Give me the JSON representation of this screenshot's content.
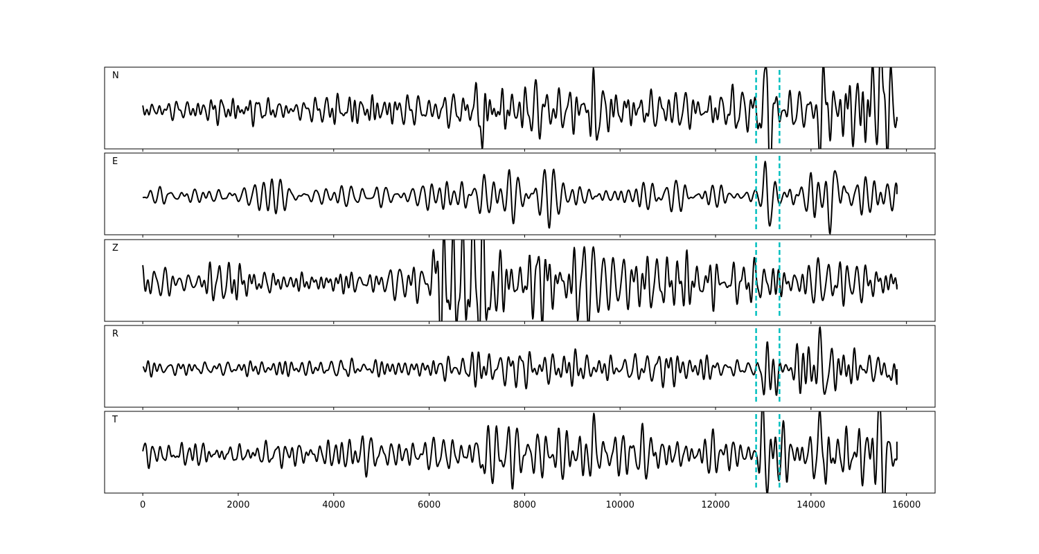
{
  "chart_data": {
    "type": "line",
    "xlim": [
      -800,
      16600
    ],
    "x_ticks": [
      0,
      2000,
      4000,
      6000,
      8000,
      10000,
      12000,
      14000,
      16000
    ],
    "x_tick_labels": [
      "0",
      "2000",
      "4000",
      "6000",
      "8000",
      "10000",
      "12000",
      "14000",
      "16000"
    ],
    "n_samples": 15800,
    "markers": [
      12850,
      13340
    ],
    "colors": {
      "trace": "#000000",
      "marker": "#00bfbf"
    },
    "panels": [
      {
        "label": "N",
        "envelope": [
          [
            0,
            0.2
          ],
          [
            1000,
            0.2
          ],
          [
            2000,
            0.22
          ],
          [
            3000,
            0.22
          ],
          [
            4000,
            0.25
          ],
          [
            5000,
            0.22
          ],
          [
            6000,
            0.2
          ],
          [
            6900,
            0.25
          ],
          [
            7050,
            0.65
          ],
          [
            7300,
            0.35
          ],
          [
            8000,
            0.32
          ],
          [
            9000,
            0.3
          ],
          [
            9400,
            0.55
          ],
          [
            9600,
            0.3
          ],
          [
            10500,
            0.28
          ],
          [
            11000,
            0.3
          ],
          [
            12000,
            0.25
          ],
          [
            12800,
            0.2
          ],
          [
            13000,
            0.8
          ],
          [
            13300,
            0.4
          ],
          [
            13800,
            0.35
          ],
          [
            14200,
            0.85
          ],
          [
            14500,
            0.5
          ],
          [
            15300,
            0.55
          ],
          [
            15800,
            0.4
          ]
        ],
        "features": [
          [
            7070,
            -0.65,
            70
          ],
          [
            7000,
            0.45,
            60
          ],
          [
            9430,
            -0.62,
            60
          ],
          [
            9380,
            0.48,
            60
          ],
          [
            13050,
            0.62,
            50
          ],
          [
            13100,
            -0.6,
            50
          ],
          [
            13180,
            -0.4,
            60
          ],
          [
            14240,
            0.72,
            50
          ],
          [
            14180,
            -0.85,
            50
          ],
          [
            15380,
            0.5,
            80
          ],
          [
            15500,
            0.45,
            80
          ]
        ],
        "end_offset": -0.3
      },
      {
        "label": "E",
        "envelope": [
          [
            0,
            0.15
          ],
          [
            1000,
            0.15
          ],
          [
            2000,
            0.17
          ],
          [
            3000,
            0.18
          ],
          [
            4000,
            0.14
          ],
          [
            5000,
            0.15
          ],
          [
            5800,
            0.15
          ],
          [
            6200,
            0.32
          ],
          [
            7000,
            0.3
          ],
          [
            8000,
            0.3
          ],
          [
            9000,
            0.25
          ],
          [
            10000,
            0.2
          ],
          [
            11000,
            0.25
          ],
          [
            12000,
            0.18
          ],
          [
            12800,
            0.1
          ],
          [
            13000,
            0.2
          ],
          [
            13300,
            0.3
          ],
          [
            14000,
            0.4
          ],
          [
            14600,
            0.45
          ],
          [
            15800,
            0.3
          ]
        ],
        "features": [
          [
            13050,
            0.98,
            55
          ],
          [
            13110,
            -0.82,
            55
          ],
          [
            13000,
            -0.2,
            50
          ],
          [
            14560,
            0.5,
            60
          ],
          [
            14380,
            -0.38,
            60
          ]
        ],
        "end_offset": 0.05
      },
      {
        "label": "Z",
        "envelope": [
          [
            0,
            0.25
          ],
          [
            1000,
            0.22
          ],
          [
            2000,
            0.28
          ],
          [
            2500,
            0.2
          ],
          [
            3000,
            0.2
          ],
          [
            4000,
            0.2
          ],
          [
            5000,
            0.22
          ],
          [
            5500,
            0.3
          ],
          [
            6000,
            0.45
          ],
          [
            6100,
            0.85
          ],
          [
            7000,
            0.85
          ],
          [
            7700,
            0.5
          ],
          [
            8000,
            0.5
          ],
          [
            9000,
            0.45
          ],
          [
            10000,
            0.45
          ],
          [
            11000,
            0.45
          ],
          [
            12000,
            0.4
          ],
          [
            12800,
            0.3
          ],
          [
            13000,
            0.2
          ],
          [
            13300,
            0.25
          ],
          [
            14000,
            0.35
          ],
          [
            15000,
            0.3
          ],
          [
            15800,
            0.25
          ]
        ],
        "features": [
          [
            6130,
            1.0,
            50
          ],
          [
            6180,
            -0.92,
            50
          ],
          [
            6920,
            0.85,
            50
          ],
          [
            7050,
            0.72,
            50
          ],
          [
            7000,
            -0.6,
            60
          ],
          [
            7300,
            -0.65,
            60
          ]
        ],
        "end_offset": -0.05
      },
      {
        "label": "R",
        "envelope": [
          [
            0,
            0.15
          ],
          [
            1000,
            0.15
          ],
          [
            2000,
            0.12
          ],
          [
            3000,
            0.12
          ],
          [
            4000,
            0.13
          ],
          [
            5000,
            0.12
          ],
          [
            6000,
            0.15
          ],
          [
            6100,
            0.4
          ],
          [
            7000,
            0.35
          ],
          [
            7500,
            0.4
          ],
          [
            8000,
            0.35
          ],
          [
            9000,
            0.25
          ],
          [
            10000,
            0.2
          ],
          [
            11000,
            0.2
          ],
          [
            12000,
            0.15
          ],
          [
            12700,
            0.12
          ],
          [
            12900,
            0.2
          ],
          [
            13300,
            0.3
          ],
          [
            13800,
            0.4
          ],
          [
            14300,
            0.5
          ],
          [
            15000,
            0.4
          ],
          [
            15800,
            0.35
          ]
        ],
        "features": [
          [
            13080,
            0.98,
            55
          ],
          [
            13020,
            -0.82,
            55
          ],
          [
            13140,
            -0.55,
            55
          ],
          [
            13280,
            -0.3,
            60
          ],
          [
            14300,
            -0.45,
            60
          ],
          [
            14200,
            0.45,
            60
          ],
          [
            15700,
            -0.4,
            60
          ]
        ],
        "end_offset": -0.02
      },
      {
        "label": "T",
        "envelope": [
          [
            0,
            0.2
          ],
          [
            1000,
            0.22
          ],
          [
            2000,
            0.22
          ],
          [
            3000,
            0.22
          ],
          [
            4000,
            0.25
          ],
          [
            5000,
            0.22
          ],
          [
            6000,
            0.2
          ],
          [
            7000,
            0.35
          ],
          [
            8000,
            0.3
          ],
          [
            9000,
            0.3
          ],
          [
            9400,
            0.5
          ],
          [
            9600,
            0.3
          ],
          [
            10500,
            0.35
          ],
          [
            11000,
            0.3
          ],
          [
            12000,
            0.25
          ],
          [
            12800,
            0.2
          ],
          [
            13000,
            0.7
          ],
          [
            13300,
            0.4
          ],
          [
            14000,
            0.35
          ],
          [
            14250,
            0.9
          ],
          [
            14500,
            0.5
          ],
          [
            15400,
            0.6
          ],
          [
            15800,
            0.4
          ]
        ],
        "features": [
          [
            7060,
            -0.62,
            60
          ],
          [
            7010,
            0.52,
            60
          ],
          [
            9430,
            0.68,
            55
          ],
          [
            9360,
            -0.42,
            60
          ],
          [
            13030,
            0.7,
            50
          ],
          [
            13090,
            -0.62,
            50
          ],
          [
            14250,
            0.92,
            50
          ],
          [
            14320,
            -0.7,
            50
          ],
          [
            15420,
            0.6,
            80
          ],
          [
            15520,
            -0.55,
            80
          ]
        ],
        "end_offset": 0.35
      }
    ]
  }
}
